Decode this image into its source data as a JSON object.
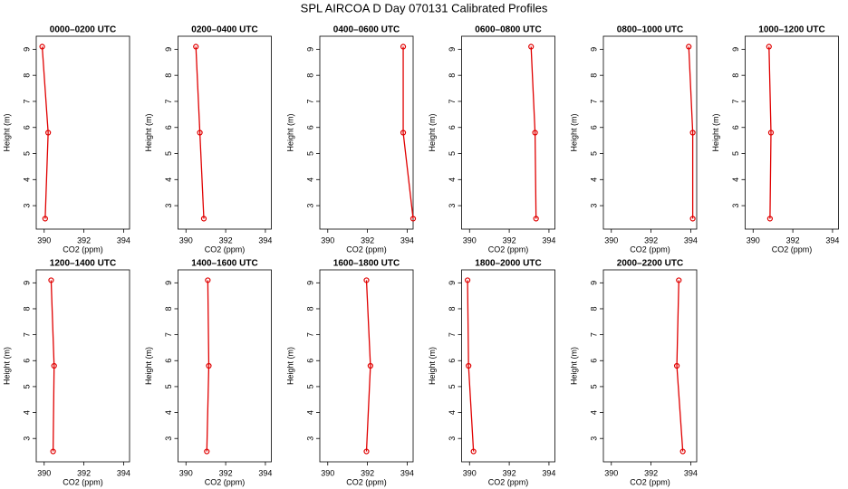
{
  "title": "SPL AIRCOA D  Day 070131  Calibrated Profiles",
  "chart_data": [
    {
      "type": "line",
      "title": "0000–0200 UTC",
      "x_label": "CO2 (ppm)",
      "y_label": "Height (m)",
      "x": [
        389.9,
        390.2,
        390.05
      ],
      "values": [
        9.1,
        5.8,
        2.5
      ],
      "color": "#e00000",
      "xlim": [
        389.6,
        394.3
      ],
      "ylim": [
        2.1,
        9.5
      ],
      "xticks": [
        390,
        392,
        394
      ],
      "yticks": [
        3,
        4,
        5,
        6,
        7,
        8,
        9
      ]
    },
    {
      "type": "line",
      "title": "0200–0400 UTC",
      "x_label": "CO2 (ppm)",
      "y_label": "Height (m)",
      "x": [
        390.5,
        390.7,
        390.9
      ],
      "values": [
        9.1,
        5.8,
        2.5
      ],
      "color": "#e00000",
      "xlim": [
        389.6,
        394.3
      ],
      "ylim": [
        2.1,
        9.5
      ],
      "xticks": [
        390,
        392,
        394
      ],
      "yticks": [
        3,
        4,
        5,
        6,
        7,
        8,
        9
      ]
    },
    {
      "type": "line",
      "title": "0400–0600 UTC",
      "x_label": "CO2 (ppm)",
      "y_label": "Height (m)",
      "x": [
        393.8,
        393.8,
        394.3
      ],
      "values": [
        9.1,
        5.8,
        2.5
      ],
      "color": "#e00000",
      "xlim": [
        389.6,
        394.3
      ],
      "ylim": [
        2.1,
        9.5
      ],
      "xticks": [
        390,
        392,
        394
      ],
      "yticks": [
        3,
        4,
        5,
        6,
        7,
        8,
        9
      ]
    },
    {
      "type": "line",
      "title": "0600–0800 UTC",
      "x_label": "CO2 (ppm)",
      "y_label": "Height (m)",
      "x": [
        393.1,
        393.3,
        393.35
      ],
      "values": [
        9.1,
        5.8,
        2.5
      ],
      "color": "#e00000",
      "xlim": [
        389.6,
        394.3
      ],
      "ylim": [
        2.1,
        9.5
      ],
      "xticks": [
        390,
        392,
        394
      ],
      "yticks": [
        3,
        4,
        5,
        6,
        7,
        8,
        9
      ]
    },
    {
      "type": "line",
      "title": "0800–1000 UTC",
      "x_label": "CO2 (ppm)",
      "y_label": "Height (m)",
      "x": [
        393.9,
        394.1,
        394.1
      ],
      "values": [
        9.1,
        5.8,
        2.5
      ],
      "color": "#e00000",
      "xlim": [
        389.6,
        394.3
      ],
      "ylim": [
        2.1,
        9.5
      ],
      "xticks": [
        390,
        392,
        394
      ],
      "yticks": [
        3,
        4,
        5,
        6,
        7,
        8,
        9
      ]
    },
    {
      "type": "line",
      "title": "1000–1200 UTC",
      "x_label": "CO2 (ppm)",
      "y_label": "Height (m)",
      "x": [
        390.8,
        390.9,
        390.85
      ],
      "values": [
        9.1,
        5.8,
        2.5
      ],
      "color": "#e00000",
      "xlim": [
        389.6,
        394.3
      ],
      "ylim": [
        2.1,
        9.5
      ],
      "xticks": [
        390,
        392,
        394
      ],
      "yticks": [
        3,
        4,
        5,
        6,
        7,
        8,
        9
      ]
    },
    {
      "type": "line",
      "title": "1200–1400 UTC",
      "x_label": "CO2 (ppm)",
      "y_label": "Height (m)",
      "x": [
        390.35,
        390.5,
        390.45
      ],
      "values": [
        9.1,
        5.8,
        2.5
      ],
      "color": "#e00000",
      "xlim": [
        389.6,
        394.3
      ],
      "ylim": [
        2.1,
        9.5
      ],
      "xticks": [
        390,
        392,
        394
      ],
      "yticks": [
        3,
        4,
        5,
        6,
        7,
        8,
        9
      ]
    },
    {
      "type": "line",
      "title": "1400–1600 UTC",
      "x_label": "CO2 (ppm)",
      "y_label": "Height (m)",
      "x": [
        391.1,
        391.15,
        391.05
      ],
      "values": [
        9.1,
        5.8,
        2.5
      ],
      "color": "#e00000",
      "xlim": [
        389.6,
        394.3
      ],
      "ylim": [
        2.1,
        9.5
      ],
      "xticks": [
        390,
        392,
        394
      ],
      "yticks": [
        3,
        4,
        5,
        6,
        7,
        8,
        9
      ]
    },
    {
      "type": "line",
      "title": "1600–1800 UTC",
      "x_label": "CO2 (ppm)",
      "y_label": "Height (m)",
      "x": [
        391.95,
        392.15,
        391.95
      ],
      "values": [
        9.1,
        5.8,
        2.5
      ],
      "color": "#e00000",
      "xlim": [
        389.6,
        394.3
      ],
      "ylim": [
        2.1,
        9.5
      ],
      "xticks": [
        390,
        392,
        394
      ],
      "yticks": [
        3,
        4,
        5,
        6,
        7,
        8,
        9
      ]
    },
    {
      "type": "line",
      "title": "1800–2000 UTC",
      "x_label": "CO2 (ppm)",
      "y_label": "Height (m)",
      "x": [
        389.9,
        389.95,
        390.2
      ],
      "values": [
        9.1,
        5.8,
        2.5
      ],
      "color": "#e00000",
      "xlim": [
        389.6,
        394.3
      ],
      "ylim": [
        2.1,
        9.5
      ],
      "xticks": [
        390,
        392,
        394
      ],
      "yticks": [
        3,
        4,
        5,
        6,
        7,
        8,
        9
      ]
    },
    {
      "type": "line",
      "title": "2000–2200 UTC",
      "x_label": "CO2 (ppm)",
      "y_label": "Height (m)",
      "x": [
        393.4,
        393.3,
        393.6
      ],
      "values": [
        9.1,
        5.8,
        2.5
      ],
      "color": "#e00000",
      "xlim": [
        389.6,
        394.3
      ],
      "ylim": [
        2.1,
        9.5
      ],
      "xticks": [
        390,
        392,
        394
      ],
      "yticks": [
        3,
        4,
        5,
        6,
        7,
        8,
        9
      ]
    }
  ]
}
